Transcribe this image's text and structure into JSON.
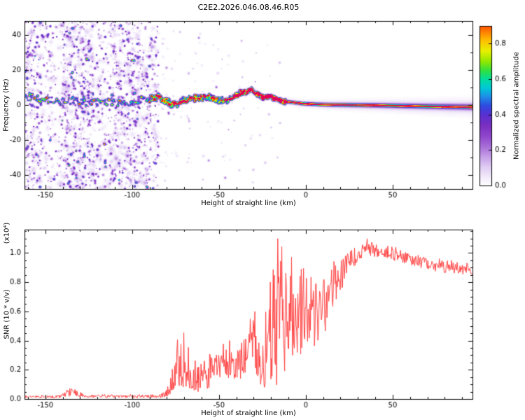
{
  "title": "C2E2.2026.046.08.46.R05",
  "colors": {
    "background": "#ffffff",
    "axis": "#000000",
    "text": "#000000",
    "snr_line": "#ff4040"
  },
  "chart_data": [
    {
      "type": "heatmap",
      "title": "C2E2.2026.046.08.46.R05",
      "xlabel": "Height of straight line (km)",
      "ylabel": "Frequency (Hz)",
      "xlim": [
        -162,
        96
      ],
      "ylim": [
        -48,
        48
      ],
      "xticks": [
        -150,
        -100,
        -50,
        0,
        50
      ],
      "yticks": [
        -40,
        -20,
        0,
        20,
        40
      ],
      "colorbar": {
        "label": "Normalized spectral amplitude",
        "ticks": [
          0,
          0.2,
          0.4,
          0.6,
          0.8
        ],
        "range": [
          0,
          0.9
        ]
      },
      "colormap": [
        [
          0.0,
          "#ffffff"
        ],
        [
          0.05,
          "#f2eafa"
        ],
        [
          0.1,
          "#e2d0f4"
        ],
        [
          0.16,
          "#c7a3e8"
        ],
        [
          0.22,
          "#a86fd8"
        ],
        [
          0.28,
          "#8f46cc"
        ],
        [
          0.34,
          "#7a2fc0"
        ],
        [
          0.4,
          "#5a2fd0"
        ],
        [
          0.45,
          "#2f4ae0"
        ],
        [
          0.5,
          "#1f8ae8"
        ],
        [
          0.55,
          "#00c8d8"
        ],
        [
          0.6,
          "#00dca0"
        ],
        [
          0.65,
          "#30e040"
        ],
        [
          0.7,
          "#90e800"
        ],
        [
          0.76,
          "#e8f000"
        ],
        [
          0.82,
          "#ffc000"
        ],
        [
          0.88,
          "#ff7000"
        ],
        [
          0.94,
          "#ff1800"
        ],
        [
          1.0,
          "#e00060"
        ]
      ],
      "noise_bands": [
        [
          -162,
          -152,
          0.85
        ],
        [
          -152,
          -141,
          0.4
        ],
        [
          -141,
          -122,
          1.0
        ],
        [
          -122,
          -113,
          0.5
        ],
        [
          -113,
          -96,
          0.9
        ],
        [
          -96,
          -85,
          0.65
        ]
      ],
      "sparse_noise": {
        "x_range": [
          -88,
          -15
        ],
        "count": 140
      },
      "signal_track": [
        [
          -162,
          5
        ],
        [
          -155,
          4
        ],
        [
          -150,
          3
        ],
        [
          -145,
          2
        ],
        [
          -140,
          2
        ],
        [
          -135,
          3
        ],
        [
          -130,
          2
        ],
        [
          -125,
          1
        ],
        [
          -120,
          2
        ],
        [
          -115,
          2
        ],
        [
          -110,
          1
        ],
        [
          -105,
          2
        ],
        [
          -100,
          2
        ],
        [
          -95,
          3
        ],
        [
          -90,
          4
        ],
        [
          -86,
          5
        ],
        [
          -82,
          3
        ],
        [
          -78,
          1
        ],
        [
          -74,
          1
        ],
        [
          -70,
          3
        ],
        [
          -66,
          4
        ],
        [
          -62,
          4
        ],
        [
          -58,
          5
        ],
        [
          -54,
          4
        ],
        [
          -50,
          3
        ],
        [
          -46,
          3
        ],
        [
          -42,
          5
        ],
        [
          -38,
          7
        ],
        [
          -34,
          8
        ],
        [
          -31,
          9
        ],
        [
          -28,
          6
        ],
        [
          -25,
          4
        ],
        [
          -22,
          5
        ],
        [
          -19,
          4
        ],
        [
          -16,
          3
        ],
        [
          -13,
          2
        ],
        [
          -10,
          2
        ],
        [
          -6,
          1.5
        ],
        [
          -2,
          1
        ],
        [
          2,
          0.8
        ],
        [
          8,
          0.5
        ],
        [
          15,
          0.3
        ],
        [
          25,
          0.2
        ],
        [
          40,
          0
        ],
        [
          55,
          -0.3
        ],
        [
          70,
          -0.6
        ],
        [
          96,
          -1
        ]
      ],
      "signal": {
        "blob_end_x": -12,
        "line_amp_base": 0.72,
        "haze_amp": 0.09,
        "mid_amp": 0.28
      }
    },
    {
      "type": "line",
      "xlabel": "Height of straight line (km)",
      "ylabel": "SNR (10 * v/v)",
      "y_multiplier": "(x10⁴)",
      "xlim": [
        -162,
        96
      ],
      "ylim": [
        0,
        1.16
      ],
      "xticks": [
        -150,
        -100,
        -50,
        0,
        50
      ],
      "yticks": [
        0,
        0.2,
        0.4,
        0.6,
        0.8,
        1
      ],
      "series": [
        {
          "name": "SNR",
          "color": "#ff4040",
          "envelope": [
            [
              -162,
              0.015,
              0.008
            ],
            [
              -142,
              0.015,
              0.008
            ],
            [
              -138,
              0.04,
              0.025
            ],
            [
              -134,
              0.05,
              0.03
            ],
            [
              -130,
              0.03,
              0.02
            ],
            [
              -127,
              0.018,
              0.01
            ],
            [
              -100,
              0.018,
              0.01
            ],
            [
              -84,
              0.02,
              0.012
            ],
            [
              -80,
              0.04,
              0.03
            ],
            [
              -77,
              0.1,
              0.08
            ],
            [
              -73,
              0.22,
              0.18
            ],
            [
              -70,
              0.25,
              0.2
            ],
            [
              -67,
              0.15,
              0.12
            ],
            [
              -63,
              0.12,
              0.09
            ],
            [
              -58,
              0.18,
              0.12
            ],
            [
              -52,
              0.22,
              0.12
            ],
            [
              -46,
              0.22,
              0.12
            ],
            [
              -41,
              0.25,
              0.12
            ],
            [
              -36,
              0.27,
              0.13
            ],
            [
              -32,
              0.3,
              0.18
            ],
            [
              -29,
              0.4,
              0.25
            ],
            [
              -26,
              0.18,
              0.12
            ],
            [
              -23,
              0.3,
              0.22
            ],
            [
              -20,
              0.45,
              0.35
            ],
            [
              -17,
              0.6,
              0.55
            ],
            [
              -15,
              0.55,
              0.5
            ],
            [
              -13,
              0.5,
              0.38
            ],
            [
              -11,
              0.45,
              0.3
            ],
            [
              -9,
              0.55,
              0.32
            ],
            [
              -6,
              0.5,
              0.3
            ],
            [
              -3,
              0.6,
              0.3
            ],
            [
              0,
              0.55,
              0.28
            ],
            [
              3,
              0.6,
              0.25
            ],
            [
              6,
              0.6,
              0.25
            ],
            [
              9,
              0.62,
              0.22
            ],
            [
              12,
              0.68,
              0.2
            ],
            [
              15,
              0.75,
              0.15
            ],
            [
              18,
              0.8,
              0.12
            ],
            [
              22,
              0.88,
              0.1
            ],
            [
              26,
              0.95,
              0.07
            ],
            [
              30,
              1.0,
              0.06
            ],
            [
              34,
              1.02,
              0.05
            ],
            [
              38,
              1.03,
              0.05
            ],
            [
              42,
              1.01,
              0.05
            ],
            [
              46,
              1.0,
              0.04
            ],
            [
              52,
              0.98,
              0.04
            ],
            [
              58,
              0.96,
              0.04
            ],
            [
              64,
              0.94,
              0.04
            ],
            [
              70,
              0.93,
              0.04
            ],
            [
              76,
              0.91,
              0.04
            ],
            [
              82,
              0.9,
              0.04
            ],
            [
              88,
              0.89,
              0.035
            ],
            [
              96,
              0.875,
              0.035
            ]
          ]
        }
      ]
    }
  ]
}
